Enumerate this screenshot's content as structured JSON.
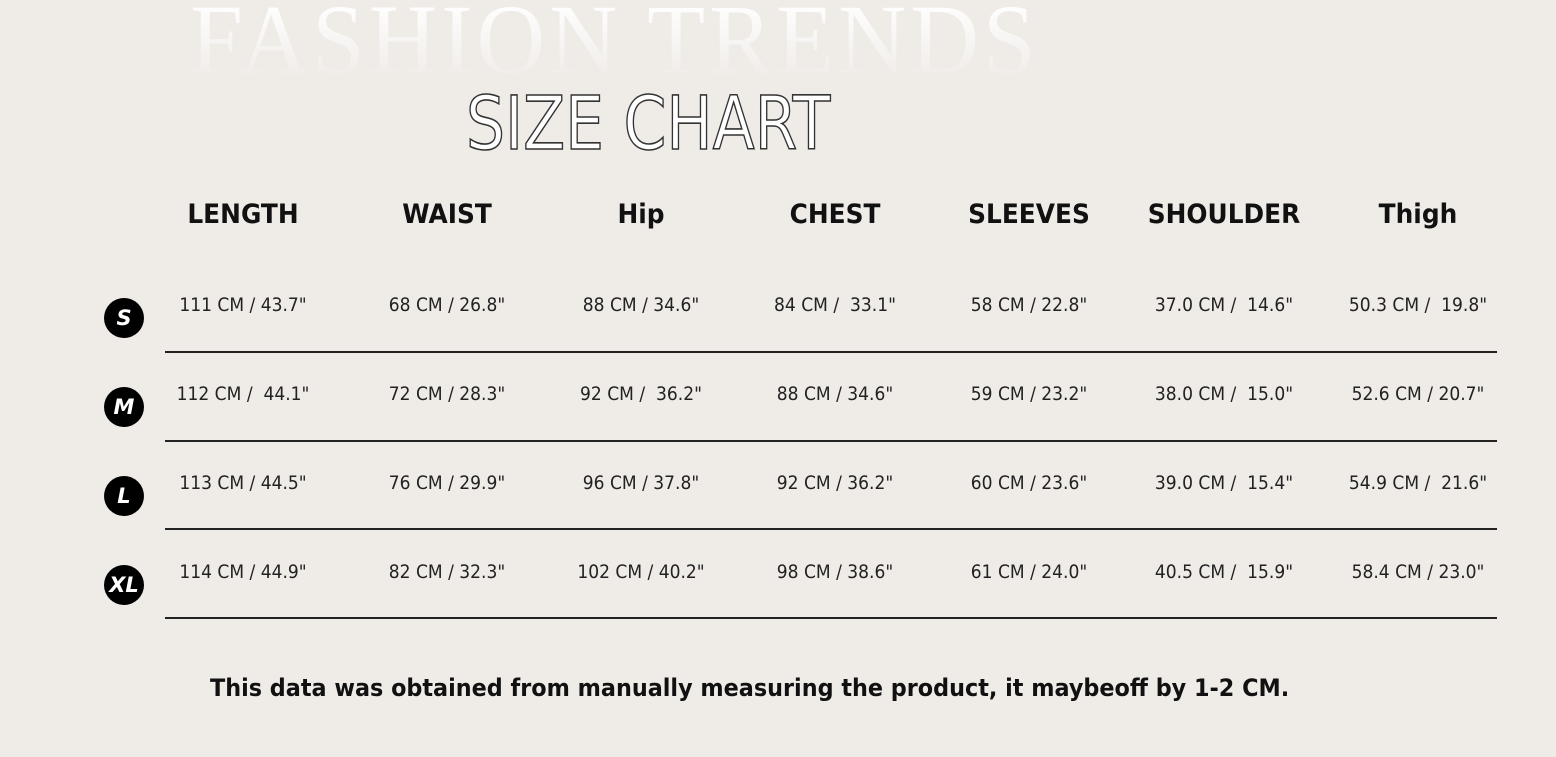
{
  "background_title": "FASHION TRENDS",
  "title": "SIZE CHART",
  "colors": {
    "background": "#efebe7",
    "text": "#111111",
    "badge": "#000000"
  },
  "headers": [
    "LENGTH",
    "WAIST",
    "Hip",
    "CHEST",
    "SLEEVES",
    "SHOULDER",
    "Thigh"
  ],
  "rows": [
    {
      "size": "S",
      "values": [
        "111 CM / 43.7\"",
        "68 CM / 26.8\"",
        "88 CM / 34.6\"",
        "84 CM /  33.1\"",
        "58 CM / 22.8\"",
        "37.0 CM /  14.6\"",
        "50.3 CM /  19.8\""
      ]
    },
    {
      "size": "M",
      "values": [
        "112 CM /  44.1\"",
        "72 CM / 28.3\"",
        "92 CM /  36.2\"",
        "88 CM / 34.6\"",
        "59 CM / 23.2\"",
        "38.0 CM /  15.0\"",
        "52.6 CM / 20.7\""
      ]
    },
    {
      "size": "L",
      "values": [
        "113 CM / 44.5\"",
        "76 CM / 29.9\"",
        "96 CM / 37.8\"",
        "92 CM / 36.2\"",
        "60 CM / 23.6\"",
        "39.0 CM /  15.4\"",
        "54.9 CM /  21.6\""
      ]
    },
    {
      "size": "XL",
      "values": [
        "114 CM / 44.9\"",
        "82 CM / 32.3\"",
        "102 CM / 40.2\"",
        "98 CM / 38.6\"",
        "61 CM / 24.0\"",
        "40.5 CM /  15.9\"",
        "58.4 CM / 23.0\""
      ]
    }
  ],
  "footer": "This data was obtained from manually measuring the product, it maybeoff by 1-2 CM."
}
